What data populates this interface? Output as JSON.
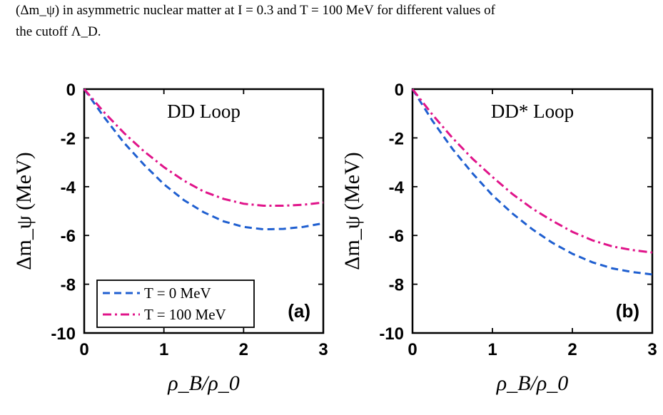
{
  "caption": {
    "line1": "(Δm_ψ) in asymmetric nuclear matter at I = 0.3 and T = 100 MeV for different values of",
    "line2": "the cutoff Λ_D."
  },
  "colors": {
    "t0": "#1f5fd0",
    "t100": "#e0148a",
    "axis": "#000000"
  },
  "chart_data": [
    {
      "type": "line",
      "panel_label": "(a)",
      "annotation": "DD Loop",
      "xlabel": "ρ_B/ρ_0",
      "ylabel": "Δm_ψ (MeV)",
      "xlim": [
        0,
        3
      ],
      "ylim": [
        -10,
        0
      ],
      "xticks": [
        "0",
        "1",
        "2",
        "3"
      ],
      "yticks": [
        "0",
        "-2",
        "-4",
        "-6",
        "-8",
        "-10"
      ],
      "legend": "bottom-left",
      "series": [
        {
          "name": "T = 0 MeV",
          "style": "dashed",
          "x": [
            0,
            0.25,
            0.5,
            0.75,
            1,
            1.25,
            1.5,
            1.75,
            2,
            2.25,
            2.5,
            2.75,
            3
          ],
          "y": [
            0,
            -1.15,
            -2.2,
            -3.1,
            -3.9,
            -4.55,
            -5.05,
            -5.42,
            -5.65,
            -5.75,
            -5.73,
            -5.65,
            -5.5
          ]
        },
        {
          "name": "T = 100 MeV",
          "style": "dashdot",
          "x": [
            0,
            0.25,
            0.5,
            0.75,
            1,
            1.25,
            1.5,
            1.75,
            2,
            2.25,
            2.5,
            2.75,
            3
          ],
          "y": [
            0,
            -0.95,
            -1.8,
            -2.55,
            -3.2,
            -3.75,
            -4.2,
            -4.5,
            -4.7,
            -4.78,
            -4.78,
            -4.74,
            -4.65
          ]
        }
      ]
    },
    {
      "type": "line",
      "panel_label": "(b)",
      "annotation": "DD* Loop",
      "xlabel": "ρ_B/ρ_0",
      "ylabel": "Δm_ψ (MeV)",
      "xlim": [
        0,
        3
      ],
      "ylim": [
        -10,
        0
      ],
      "xticks": [
        "0",
        "1",
        "2",
        "3"
      ],
      "yticks": [
        "0",
        "-2",
        "-4",
        "-6",
        "-8",
        "-10"
      ],
      "series": [
        {
          "name": "T = 0 MeV",
          "style": "dashed",
          "x": [
            0,
            0.25,
            0.5,
            0.75,
            1,
            1.25,
            1.5,
            1.75,
            2,
            2.25,
            2.5,
            2.75,
            3
          ],
          "y": [
            0,
            -1.3,
            -2.45,
            -3.45,
            -4.35,
            -5.1,
            -5.75,
            -6.3,
            -6.75,
            -7.1,
            -7.35,
            -7.5,
            -7.6
          ]
        },
        {
          "name": "T = 100 MeV",
          "style": "dashdot",
          "x": [
            0,
            0.25,
            0.5,
            0.75,
            1,
            1.25,
            1.5,
            1.75,
            2,
            2.25,
            2.5,
            2.75,
            3
          ],
          "y": [
            0,
            -1.05,
            -2.0,
            -2.85,
            -3.6,
            -4.3,
            -4.9,
            -5.4,
            -5.85,
            -6.2,
            -6.45,
            -6.6,
            -6.7
          ]
        }
      ]
    }
  ]
}
